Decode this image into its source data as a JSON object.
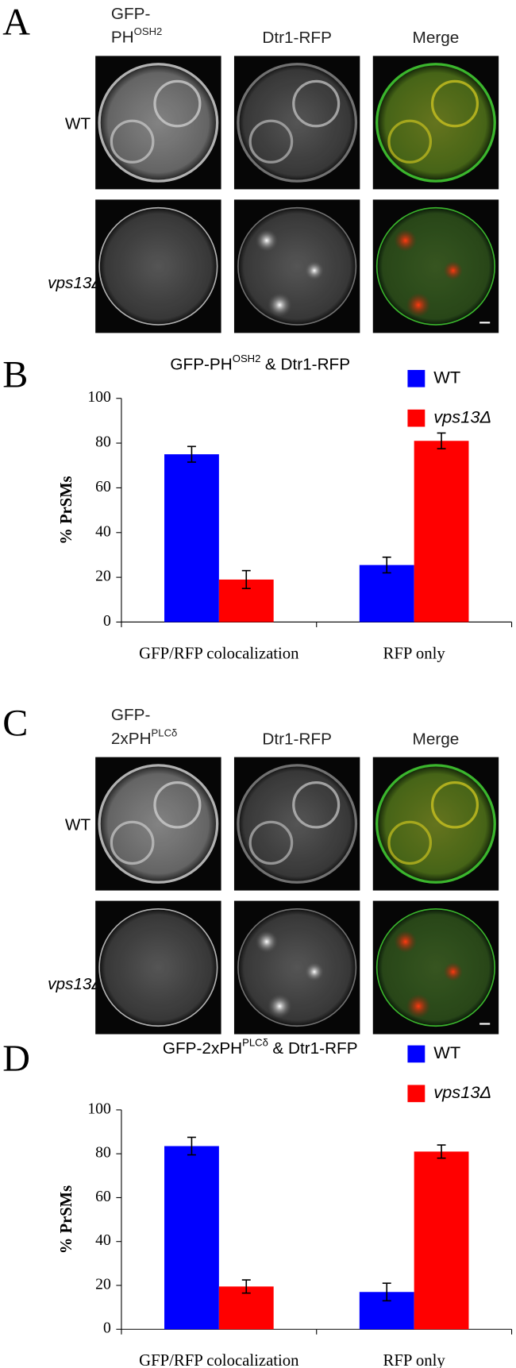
{
  "image_panels": [
    {
      "label": "A",
      "gfp_line1": "GFP-",
      "gfp_line2": "PH",
      "gfp_sup": "OSH2",
      "dtr1": "Dtr1-RFP",
      "merge": "Merge",
      "wt": "WT",
      "mutant": "vps13Δ"
    },
    {
      "label": "C",
      "gfp_line1": "GFP-",
      "gfp_line2": "2xPH",
      "gfp_sup": "PLCδ",
      "dtr1": "Dtr1-RFP",
      "merge": "Merge",
      "wt": "WT",
      "mutant": "vps13Δ"
    }
  ],
  "chart_data": [
    {
      "panel_label": "B",
      "type": "bar",
      "title": [
        "GFP-PH",
        "OSH2",
        "& Dtr1-RFP"
      ],
      "y_label": "% PrSMs",
      "categories": [
        "GFP/RFP colocalization",
        "RFP only"
      ],
      "series": [
        {
          "name": "WT",
          "color": "#0000ff",
          "values": [
            75,
            25.5
          ],
          "errors": [
            3.5,
            3.5
          ]
        },
        {
          "name": "vps13Δ",
          "color": "#ff0000",
          "values": [
            19,
            81
          ],
          "errors": [
            4,
            3.5
          ]
        }
      ],
      "ylim": [
        0,
        100
      ],
      "yticks": [
        0,
        20,
        40,
        60,
        80,
        100
      ]
    },
    {
      "panel_label": "D",
      "type": "bar",
      "title": [
        "GFP-2xPH",
        "PLCδ",
        "& Dtr1-RFP"
      ],
      "y_label": "% PrSMs",
      "categories": [
        "GFP/RFP colocalization",
        "RFP only"
      ],
      "series": [
        {
          "name": "WT",
          "color": "#0000ff",
          "values": [
            83.5,
            17
          ],
          "errors": [
            4,
            4
          ]
        },
        {
          "name": "vps13Δ",
          "color": "#ff0000",
          "values": [
            19.5,
            81
          ],
          "errors": [
            3,
            3
          ]
        }
      ],
      "ylim": [
        0,
        100
      ],
      "yticks": [
        0,
        20,
        40,
        60,
        80,
        100
      ]
    }
  ]
}
